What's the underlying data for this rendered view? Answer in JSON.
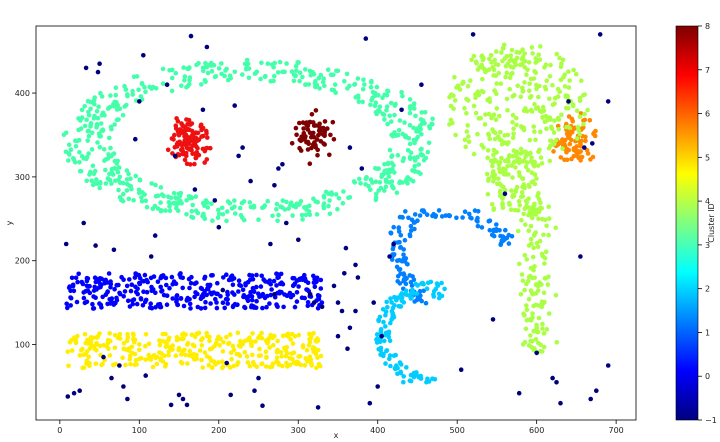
{
  "chart_data": {
    "type": "scatter",
    "title": "",
    "xlabel": "x",
    "ylabel": "y",
    "xlim": [
      -30,
      725
    ],
    "ylim": [
      10,
      480
    ],
    "x_ticks": [
      0,
      100,
      200,
      300,
      400,
      500,
      600,
      700
    ],
    "y_ticks": [
      100,
      200,
      300,
      400
    ],
    "grid": false,
    "colorbar": {
      "label": "Cluster ID",
      "range": [
        -1,
        8
      ],
      "ticks": [
        -1,
        0,
        1,
        2,
        3,
        4,
        5,
        6,
        7,
        8
      ],
      "colormap": [
        "#00007f",
        "#0000ff",
        "#007fff",
        "#00ffff",
        "#7fff7f",
        "#ffff00",
        "#ff7f00",
        "#ff0000",
        "#7f0000"
      ]
    },
    "series": [
      {
        "cluster": -1,
        "color": "#00007f",
        "points": [
          [
            8,
            220
          ],
          [
            10,
            38
          ],
          [
            18,
            42
          ],
          [
            25,
            45
          ],
          [
            30,
            245
          ],
          [
            33,
            430
          ],
          [
            45,
            218
          ],
          [
            48,
            425
          ],
          [
            50,
            435
          ],
          [
            55,
            85
          ],
          [
            65,
            60
          ],
          [
            68,
            213
          ],
          [
            75,
            75
          ],
          [
            80,
            50
          ],
          [
            85,
            35
          ],
          [
            95,
            345
          ],
          [
            100,
            390
          ],
          [
            105,
            445
          ],
          [
            108,
            63
          ],
          [
            115,
            205
          ],
          [
            120,
            230
          ],
          [
            135,
            410
          ],
          [
            140,
            28
          ],
          [
            145,
            325
          ],
          [
            150,
            40
          ],
          [
            155,
            35
          ],
          [
            160,
            28
          ],
          [
            165,
            468
          ],
          [
            170,
            285
          ],
          [
            180,
            380
          ],
          [
            185,
            455
          ],
          [
            195,
            272
          ],
          [
            200,
            240
          ],
          [
            205,
            165
          ],
          [
            210,
            78
          ],
          [
            215,
            40
          ],
          [
            220,
            385
          ],
          [
            225,
            325
          ],
          [
            230,
            335
          ],
          [
            240,
            295
          ],
          [
            245,
            45
          ],
          [
            250,
            60
          ],
          [
            255,
            27
          ],
          [
            265,
            220
          ],
          [
            270,
            290
          ],
          [
            270,
            160
          ],
          [
            275,
            310
          ],
          [
            280,
            315
          ],
          [
            285,
            245
          ],
          [
            300,
            225
          ],
          [
            315,
            160
          ],
          [
            320,
            150
          ],
          [
            325,
            25
          ],
          [
            330,
            145
          ],
          [
            345,
            170
          ],
          [
            350,
            110
          ],
          [
            350,
            150
          ],
          [
            355,
            140
          ],
          [
            358,
            185
          ],
          [
            360,
            215
          ],
          [
            362,
            95
          ],
          [
            365,
            335
          ],
          [
            365,
            120
          ],
          [
            372,
            140
          ],
          [
            372,
            195
          ],
          [
            375,
            180
          ],
          [
            380,
            310
          ],
          [
            385,
            465
          ],
          [
            390,
            30
          ],
          [
            395,
            150
          ],
          [
            400,
            50
          ],
          [
            405,
            110
          ],
          [
            415,
            205
          ],
          [
            420,
            220
          ],
          [
            430,
            380
          ],
          [
            455,
            410
          ],
          [
            505,
            70
          ],
          [
            520,
            470
          ],
          [
            545,
            130
          ],
          [
            560,
            280
          ],
          [
            578,
            42
          ],
          [
            600,
            90
          ],
          [
            620,
            60
          ],
          [
            625,
            55
          ],
          [
            630,
            30
          ],
          [
            640,
            390
          ],
          [
            655,
            205
          ],
          [
            660,
            335
          ],
          [
            668,
            35
          ],
          [
            670,
            340
          ],
          [
            675,
            45
          ],
          [
            680,
            470
          ],
          [
            690,
            390
          ],
          [
            690,
            75
          ]
        ]
      },
      {
        "cluster": 0,
        "color": "#0000ff",
        "region": "horizontal band",
        "x_range": [
          8,
          330
        ],
        "y_range": [
          140,
          185
        ]
      },
      {
        "cluster": 1,
        "color": "#007fff",
        "region": "upper arc",
        "x_range": [
          405,
          580
        ],
        "y_range": [
          125,
          260
        ]
      },
      {
        "cluster": 2,
        "color": "#00ccff",
        "region": "lower arc",
        "x_range": [
          395,
          505
        ],
        "y_range": [
          55,
          175
        ]
      },
      {
        "cluster": 3,
        "color": "#44ffaa",
        "region": "ellipse ring",
        "x_range": [
          5,
          470
        ],
        "y_range": [
          245,
          445
        ]
      },
      {
        "cluster": 4,
        "color": "#aaff44",
        "region": "right wedge",
        "x_range": [
          490,
          700
        ],
        "y_range": [
          80,
          465
        ]
      },
      {
        "cluster": 5,
        "color": "#ffee00",
        "region": "horizontal band",
        "x_range": [
          10,
          330
        ],
        "y_range": [
          70,
          115
        ]
      },
      {
        "cluster": 6,
        "color": "#ff8800",
        "region": "small blob",
        "x_range": [
          615,
          690
        ],
        "y_range": [
          305,
          390
        ]
      },
      {
        "cluster": 7,
        "color": "#ee1111",
        "region": "small blob",
        "x_range": [
          125,
          200
        ],
        "y_range": [
          300,
          385
        ]
      },
      {
        "cluster": 8,
        "color": "#7f0000",
        "region": "small blob",
        "x_range": [
          283,
          365
        ],
        "y_range": [
          310,
          385
        ]
      }
    ]
  }
}
